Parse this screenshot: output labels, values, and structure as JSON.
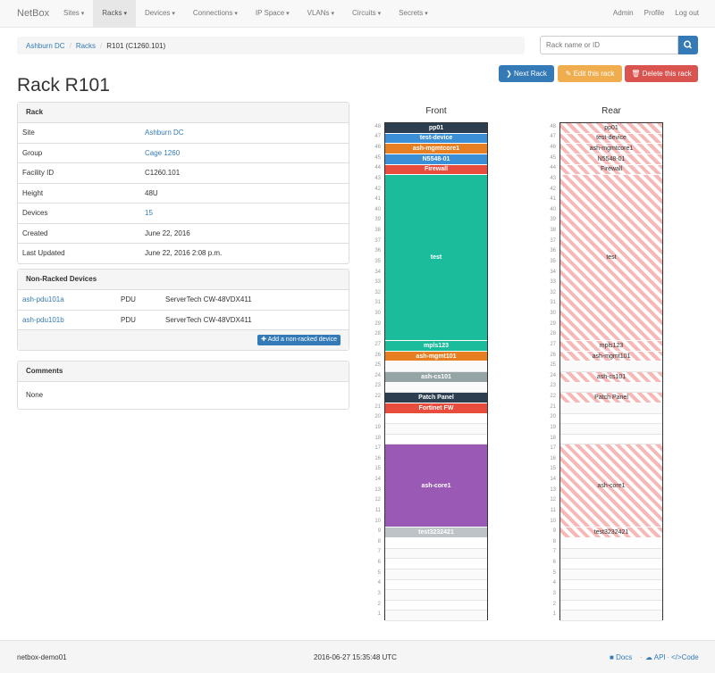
{
  "navbar": {
    "brand": "NetBox",
    "menus": [
      "Sites",
      "Racks",
      "Devices",
      "Connections",
      "IP Space",
      "VLANs",
      "Circuits",
      "Secrets"
    ],
    "user": [
      "Admin",
      "Profile",
      "Log out"
    ]
  },
  "breadcrumb": [
    "Ashburn DC",
    "Racks",
    "R101 (C1260.101)"
  ],
  "search": {
    "placeholder": "Rack name or ID"
  },
  "buttons": [
    "Next Rack",
    "Edit this rack",
    "Delete this rack"
  ],
  "title": "Rack R101",
  "rack_panel": {
    "heading": "Rack",
    "rows": [
      [
        "Site",
        "Ashburn DC"
      ],
      [
        "Group",
        "Cage 1260"
      ],
      [
        "Facility ID",
        "C1260.101"
      ],
      [
        "Height",
        "48U"
      ],
      [
        "Devices",
        "15"
      ],
      [
        "Created",
        "June 22, 2016"
      ],
      [
        "Last Updated",
        "June 22, 2016 2:08 p.m."
      ]
    ]
  },
  "non_racked": {
    "heading": "Non-Racked Devices",
    "rows": [
      [
        "ash-pdu101a",
        "PDU",
        "ServerTech CW-48VDX411"
      ],
      [
        "ash-pdu101b",
        "PDU",
        "ServerTech CW-48VDX411"
      ]
    ],
    "button": "Add a non-racked device"
  },
  "comments": {
    "heading": "Comments",
    "body": "None"
  },
  "elevation": {
    "faces": [
      "Front",
      "Rear"
    ],
    "units": [
      48,
      47,
      46,
      45,
      44,
      43,
      42,
      41,
      40,
      39,
      38,
      37,
      36,
      35,
      34,
      33,
      32,
      31,
      30,
      29,
      28,
      27,
      26,
      25,
      24,
      23,
      22,
      21,
      20,
      19,
      18,
      17,
      16,
      15,
      14,
      13,
      12,
      11,
      10,
      9,
      8,
      7,
      6,
      5,
      4,
      3,
      2,
      1
    ],
    "devices": [
      {
        "name": "pp01",
        "position": 48,
        "height": 1,
        "color": "#2c3e50",
        "rear": true
      },
      {
        "name": "test-device",
        "position": 47,
        "height": 1,
        "color": "#3a8fd6",
        "rear": true
      },
      {
        "name": "ash-mgmtcore1",
        "position": 46,
        "height": 1,
        "color": "#e67e22",
        "rear": true
      },
      {
        "name": "N5548-01",
        "position": 45,
        "height": 1,
        "color": "#3a8fd6",
        "rear": true
      },
      {
        "name": "Firewall",
        "position": 44,
        "height": 1,
        "color": "#e74c3c",
        "rear": true
      },
      {
        "name": "test",
        "position": 28,
        "height": 16,
        "color": "#1abc9c",
        "rear": true
      },
      {
        "name": "mpls123",
        "position": 27,
        "height": 1,
        "color": "#1abc9c",
        "rear": true
      },
      {
        "name": "ash-mgmt101",
        "position": 26,
        "height": 1,
        "color": "#e67e22",
        "rear": true
      },
      {
        "name": "ash-cs101",
        "position": 24,
        "height": 1,
        "color": "#95a5a6",
        "rear": true
      },
      {
        "name": "Patch Panel",
        "position": 22,
        "height": 1,
        "color": "#2c3e50",
        "rear": true
      },
      {
        "name": "Fortinet FW",
        "position": 21,
        "height": 1,
        "color": "#e74c3c",
        "rear": false
      },
      {
        "name": "ash-core1",
        "position": 10,
        "height": 8,
        "color": "#9b59b6",
        "rear": true
      },
      {
        "name": "test3232421",
        "position": 9,
        "height": 1,
        "color": "#bdc3c7",
        "rear": true
      }
    ]
  },
  "footer": {
    "host": "netbox-demo01",
    "time": "2016-06-27 15:35:48 UTC",
    "links": [
      "Docs",
      "API",
      "Code"
    ]
  }
}
